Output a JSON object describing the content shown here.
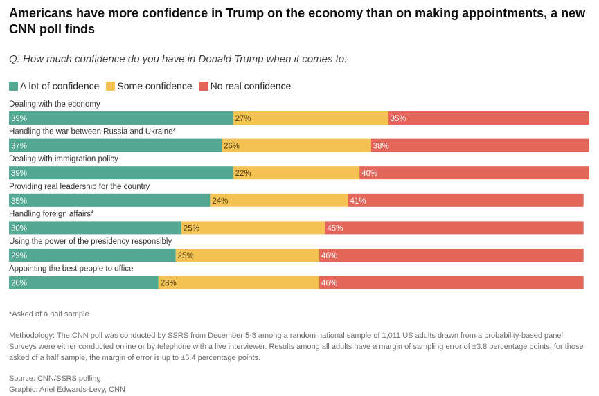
{
  "title": "Americans have more confidence in Trump on the economy than on making appointments, a new CNN poll finds",
  "subtitle": "Q: How much confidence do you have in Donald Trump when it comes to:",
  "colors": {
    "a_lot": "#52a892",
    "some": "#f4c253",
    "none": "#e4655a"
  },
  "footer": {
    "note": "*Asked of a half sample",
    "methodology": "Methodology: The CNN poll was conducted by SSRS from December 5-8 among a random national sample of 1,011 US adults drawn from a probability-based panel. Surveys were either conducted online or by telephone with a live interviewer. Results among all adults have a margin of sampling error of ±3.8 percentage points; for those asked of a half sample, the margin of error is up to ±5.4 percentage points.",
    "source": "Source: CNN/SSRS polling",
    "graphic": "Graphic: Ariel Edwards-Levy, CNN"
  },
  "chart_data": {
    "type": "bar",
    "orientation": "horizontal",
    "stacked": true,
    "title": "Americans have more confidence in Trump on the economy than on making appointments, a new CNN poll finds",
    "subtitle": "Q: How much confidence do you have in Donald Trump when it comes to:",
    "categories": [
      "Dealing with the economy",
      "Handling the war between Russia and Ukraine*",
      "Dealing with immigration policy",
      "Providing real leadership for the country",
      "Handling foreign affairs*",
      "Using the power of the presidency responsibly",
      "Appointing the best people to office"
    ],
    "series": [
      {
        "name": "A lot of confidence",
        "color": "#52a892",
        "values": [
          39,
          37,
          39,
          35,
          30,
          29,
          26
        ]
      },
      {
        "name": "Some confidence",
        "color": "#f4c253",
        "values": [
          27,
          26,
          22,
          24,
          25,
          25,
          28
        ]
      },
      {
        "name": "No real confidence",
        "color": "#e4655a",
        "values": [
          35,
          38,
          40,
          41,
          45,
          46,
          46
        ]
      }
    ],
    "value_suffix": "%",
    "xlim": [
      0,
      101
    ],
    "legend_position": "top-left",
    "grid": false
  }
}
